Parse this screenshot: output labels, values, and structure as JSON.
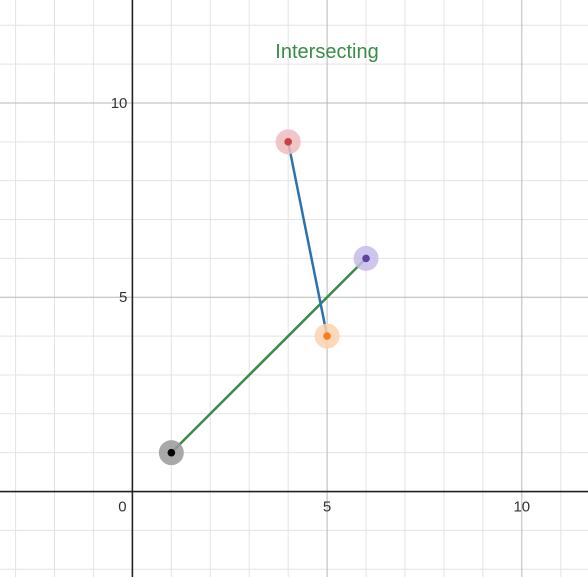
{
  "chart_data": {
    "type": "scatter",
    "title": "Intersecting",
    "xlim": [
      -3.4,
      11.7
    ],
    "ylim": [
      -2.2,
      12.65
    ],
    "grid": true,
    "minor_step": 1,
    "major_step": 5,
    "x_tick_labels": [
      {
        "value": 0,
        "text": "0"
      },
      {
        "value": 5,
        "text": "5"
      },
      {
        "value": 10,
        "text": "10"
      }
    ],
    "y_tick_labels": [
      {
        "value": 5,
        "text": "5"
      },
      {
        "value": 10,
        "text": "10"
      }
    ],
    "points": [
      {
        "name": "point-a",
        "x": 1,
        "y": 1,
        "color": "#000000",
        "halo": "#9a9a9a"
      },
      {
        "name": "point-b",
        "x": 6,
        "y": 6,
        "color": "#6042a6",
        "halo": "#c7bce8"
      },
      {
        "name": "point-c",
        "x": 4,
        "y": 9,
        "color": "#c74440",
        "halo": "#efbcbc"
      },
      {
        "name": "point-d",
        "x": 5,
        "y": 4,
        "color": "#fa7e19",
        "halo": "#fdd2b0"
      }
    ],
    "segments": [
      {
        "name": "segment-ab",
        "from": [
          1,
          1
        ],
        "to": [
          6,
          6
        ],
        "color": "#388c46"
      },
      {
        "name": "segment-cd",
        "from": [
          4,
          9
        ],
        "to": [
          5,
          4
        ],
        "color": "#2d70b3"
      }
    ]
  },
  "colors": {
    "title": "#388c46",
    "minor_grid": "#e3e3e3",
    "major_grid": "#b8b8b8",
    "axis": "#222222"
  }
}
